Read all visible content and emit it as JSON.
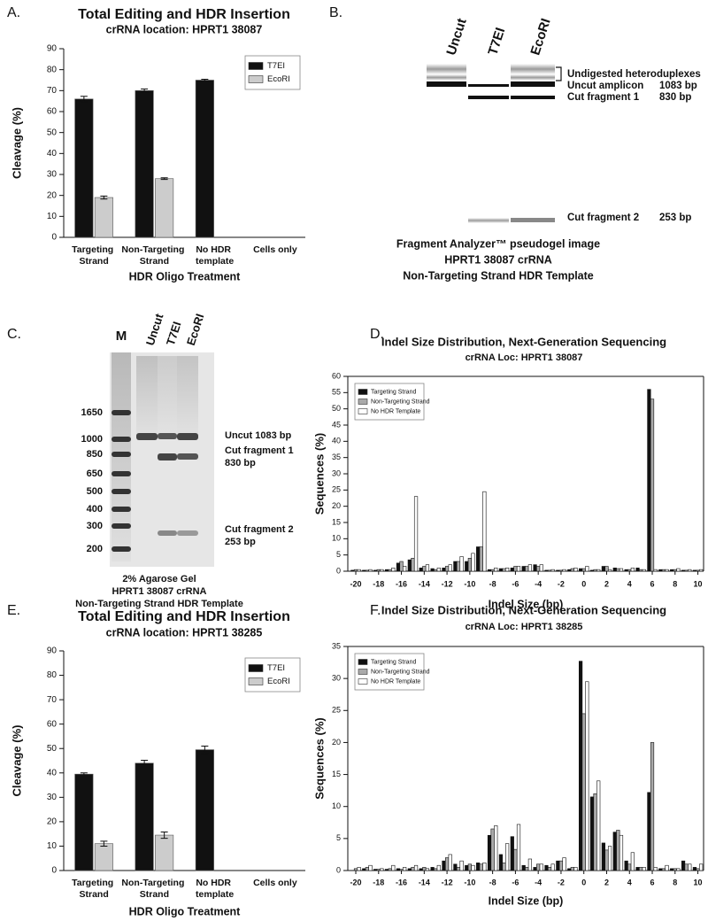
{
  "chart_data": [
    {
      "type": "bar",
      "panel": "A.",
      "title": "Total Editing and HDR Insertion",
      "subtitle": "crRNA location: HPRT1 38087",
      "xlabel": "HDR Oligo Treatment",
      "ylabel": "Cleavage (%)",
      "categories": [
        "Targeting Strand",
        "Non-Targeting Strand",
        "No HDR template",
        "Cells only"
      ],
      "series": [
        {
          "name": "T7EI",
          "color": "#111111",
          "values": [
            66,
            70,
            75,
            null
          ],
          "errors": [
            1.3,
            0.8,
            0.4,
            null
          ]
        },
        {
          "name": "EcoRI",
          "color": "#cccccc",
          "values": [
            19,
            28,
            null,
            null
          ],
          "errors": [
            0.7,
            0.4,
            null,
            null
          ]
        }
      ],
      "ylim": [
        0,
        90
      ],
      "yticks": [
        0,
        10,
        20,
        30,
        40,
        50,
        60,
        70,
        80,
        90
      ],
      "legend": "upper right"
    },
    {
      "type": "bar",
      "panel": "D.",
      "title": "Indel Size Distribution, Next-Generation Sequencing",
      "subtitle": "crRNA Loc: HPRT1 38087",
      "xlabel": "Indel Size (bp)",
      "ylabel": "Sequences (%)",
      "x": [
        -20,
        -19,
        -18,
        -17,
        -16,
        -15,
        -14,
        -13,
        -12,
        -11,
        -10,
        -9,
        -8,
        -7,
        -6,
        -5,
        -4,
        -3,
        -2,
        -1,
        0,
        1,
        2,
        3,
        4,
        5,
        6,
        7,
        8,
        9,
        10
      ],
      "series": [
        {
          "name": "Targeting Strand",
          "color": "#111111",
          "values": [
            0.3,
            0.3,
            0.3,
            0.5,
            2.5,
            3.5,
            1,
            0.8,
            1,
            3,
            3,
            7.5,
            0.5,
            0.8,
            1,
            1.5,
            2,
            0.3,
            0.3,
            0.5,
            0.8,
            0.3,
            1.5,
            1,
            0.5,
            1,
            56,
            0.5,
            0.5,
            0.3,
            0.3
          ]
        },
        {
          "name": "Non-Targeting Strand",
          "color": "#aaaaaa",
          "values": [
            0.5,
            0.3,
            0.5,
            0.5,
            3,
            4,
            1.5,
            0.5,
            1.5,
            3,
            4,
            7.5,
            0.5,
            0.8,
            1.5,
            1.5,
            1.5,
            0.3,
            0.3,
            0.8,
            0.8,
            0.5,
            1.5,
            0.8,
            0.5,
            0.5,
            53,
            0.5,
            0.5,
            0.3,
            0.3
          ]
        },
        {
          "name": "No HDR Template",
          "color": "#ffffff",
          "values": [
            0.5,
            0.5,
            0.5,
            1,
            1.5,
            23,
            2,
            1,
            2,
            4.5,
            5.5,
            24.5,
            1,
            1,
            1.5,
            2,
            2,
            0.5,
            0.5,
            1,
            1.5,
            0.5,
            0.5,
            0.8,
            1,
            0.5,
            0.5,
            0.5,
            0.8,
            0.5,
            0.5
          ]
        }
      ],
      "xlim": [
        -20.7,
        10.5
      ],
      "xticks": [
        -20,
        -18,
        -16,
        -14,
        -12,
        -10,
        -8,
        -6,
        -4,
        -2,
        0,
        2,
        4,
        6,
        8,
        10
      ],
      "ylim": [
        0,
        60
      ],
      "yticks": [
        0,
        5,
        10,
        15,
        20,
        25,
        30,
        35,
        40,
        45,
        50,
        55,
        60
      ],
      "legend": "upper left"
    },
    {
      "type": "bar",
      "panel": "E.",
      "title": "Total Editing and HDR Insertion",
      "subtitle": "crRNA location: HPRT1 38285",
      "xlabel": "HDR Oligo Treatment",
      "ylabel": "Cleavage (%)",
      "categories": [
        "Targeting Strand",
        "Non-Targeting Strand",
        "No HDR template",
        "Cells only"
      ],
      "series": [
        {
          "name": "T7EI",
          "color": "#111111",
          "values": [
            39.5,
            44,
            49.5,
            null
          ],
          "errors": [
            0.5,
            1.2,
            1.5,
            null
          ]
        },
        {
          "name": "EcoRI",
          "color": "#cccccc",
          "values": [
            11,
            14.5,
            null,
            null
          ],
          "errors": [
            1,
            1.3,
            null,
            null
          ]
        }
      ],
      "ylim": [
        0,
        90
      ],
      "yticks": [
        0,
        10,
        20,
        30,
        40,
        50,
        60,
        70,
        80,
        90
      ],
      "legend": "upper right"
    },
    {
      "type": "bar",
      "panel": "F.",
      "title": "Indel Size Distribution, Next-Generation Sequencing",
      "subtitle": "crRNA Loc: HPRT1 38285",
      "xlabel": "Indel Size (bp)",
      "ylabel": "Sequences (%)",
      "x": [
        -20,
        -19,
        -18,
        -17,
        -16,
        -15,
        -14,
        -13,
        -12,
        -11,
        -10,
        -9,
        -8,
        -7,
        -6,
        -5,
        -4,
        -3,
        -2,
        -1,
        0,
        1,
        2,
        3,
        4,
        5,
        6,
        7,
        8,
        9,
        10
      ],
      "series": [
        {
          "name": "Targeting Strand",
          "color": "#111111",
          "values": [
            0,
            0.3,
            0.2,
            0.2,
            0.3,
            0.3,
            0.3,
            0.5,
            1.5,
            1,
            0.8,
            1.2,
            5.5,
            2.5,
            5.3,
            0.8,
            0.5,
            0.8,
            1.5,
            0.3,
            32.7,
            11.5,
            4.3,
            6,
            1.5,
            0.5,
            12.2,
            0.3,
            0.3,
            1.5,
            0.5
          ]
        },
        {
          "name": "Non-Targeting Strand",
          "color": "#aaaaaa",
          "values": [
            0.3,
            0.5,
            0.2,
            0.3,
            0.2,
            0.5,
            0.5,
            0.3,
            2,
            0.5,
            1,
            1,
            6.5,
            1.2,
            3.3,
            0.5,
            1,
            0.5,
            1.5,
            0.5,
            24.5,
            12,
            3.2,
            6.3,
            1,
            0.5,
            20,
            0.3,
            0.3,
            1,
            0.3
          ]
        },
        {
          "name": "No HDR Template",
          "color": "#ffffff",
          "values": [
            0.5,
            0.8,
            0.3,
            0.8,
            0.5,
            0.8,
            0.3,
            0.8,
            2.5,
            1.5,
            0.8,
            1.2,
            7,
            4.2,
            7.2,
            1.8,
            1,
            1,
            2,
            0.5,
            29.5,
            14,
            3.8,
            5.5,
            2.8,
            0.5,
            0.5,
            0.8,
            0.3,
            1,
            1
          ]
        }
      ],
      "xlim": [
        -20.7,
        10.5
      ],
      "xticks": [
        -20,
        -18,
        -16,
        -14,
        -12,
        -10,
        -8,
        -6,
        -4,
        -2,
        0,
        2,
        4,
        6,
        8,
        10
      ],
      "ylim": [
        0,
        35
      ],
      "yticks": [
        0,
        5,
        10,
        15,
        20,
        25,
        30,
        35
      ],
      "legend": "upper left"
    }
  ],
  "gel_b": {
    "panel": "B.",
    "lanes": [
      "Uncut",
      "T7EI",
      "EcoRI"
    ],
    "bands": {
      "heteroduplex": "Undigested heteroduplexes",
      "uncut": "Uncut amplicon",
      "uncut_size": "1083 bp",
      "cut1": "Cut fragment 1",
      "cut1_size": "830 bp",
      "cut2": "Cut fragment 2",
      "cut2_size": "253 bp"
    },
    "caption": [
      "Fragment Analyzer™ pseudogel image",
      "HPRT1 38087 crRNA",
      "Non-Targeting Strand HDR Template"
    ]
  },
  "gel_c": {
    "panel": "C.",
    "lanes": [
      "M",
      "Uncut",
      "T7EI",
      "EcoRI"
    ],
    "ladder": [
      1650,
      1000,
      850,
      650,
      500,
      400,
      300,
      200
    ],
    "bands": {
      "uncut": "Uncut 1083 bp",
      "cut1": "Cut fragment 1",
      "cut1_size": "830 bp",
      "cut2": "Cut fragment 2",
      "cut2_size": "253 bp"
    },
    "caption": [
      "2% Agarose Gel",
      "HPRT1 38087 crRNA",
      "Non-Targeting Strand HDR Template"
    ]
  }
}
